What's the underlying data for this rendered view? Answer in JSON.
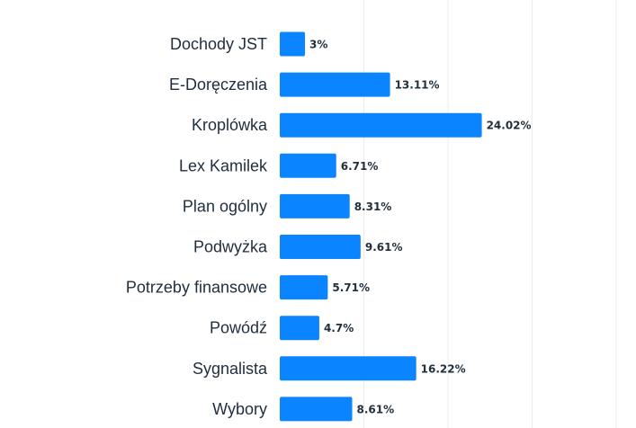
{
  "chart_data": {
    "type": "bar",
    "orientation": "horizontal",
    "categories": [
      "Dochody JST",
      "E-Doręczenia",
      "Kroplówka",
      "Lex Kamilek",
      "Plan ogólny",
      "Podwyżka",
      "Potrzeby finansowe",
      "Powódź",
      "Sygnalista",
      "Wybory"
    ],
    "values": [
      3,
      13.11,
      24.02,
      6.71,
      8.31,
      9.61,
      5.71,
      4.7,
      16.22,
      8.61
    ],
    "value_labels": [
      "3%",
      "13.11%",
      "24.02%",
      "6.71%",
      "8.31%",
      "9.61%",
      "5.71%",
      "4.7%",
      "16.22%",
      "8.61%"
    ],
    "unit": "%",
    "xlim": [
      0,
      40
    ],
    "grid": true,
    "gridlines": [
      10,
      20,
      30,
      40
    ],
    "colors": {
      "bar": "#0a84ff",
      "grid": "#ececef",
      "label": "#22303c"
    }
  }
}
